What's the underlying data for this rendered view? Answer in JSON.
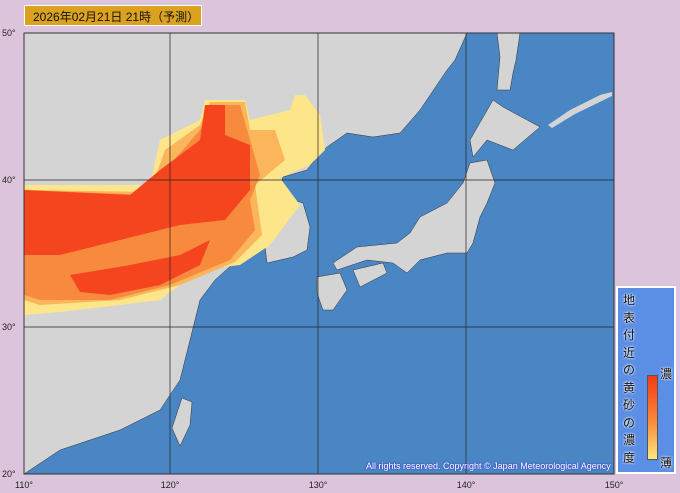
{
  "header": {
    "title": "2026年02月21日 21時（予測）"
  },
  "map": {
    "latitude_labels": [
      "50°",
      "40°",
      "30°",
      "20°"
    ],
    "longitude_labels": [
      "110°",
      "120°",
      "130°",
      "140°",
      "150°"
    ],
    "copyright": "All rights reserved. Copyright © Japan Meteorological Agency",
    "colors": {
      "sea": "#4a86c4",
      "land": "#d4d4d4",
      "dust_high": "#f5451e",
      "dust_mid": "#f88a3e",
      "dust_low": "#fbb55b",
      "dust_faint": "#fde58a"
    }
  },
  "legend": {
    "title": "地表付近の黄砂の濃度",
    "high_label": "濃",
    "low_label": "薄"
  }
}
